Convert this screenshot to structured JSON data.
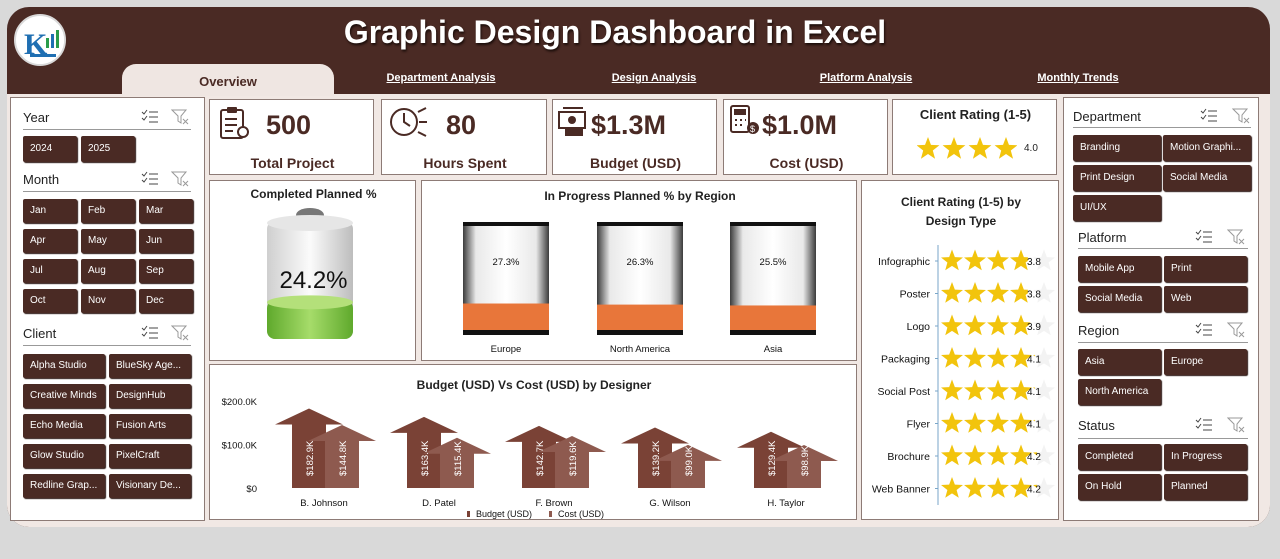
{
  "header": {
    "title": "Graphic Design Dashboard in Excel"
  },
  "tabs": [
    "Overview",
    "Department Analysis",
    "Design Analysis",
    "Platform Analysis",
    "Monthly Trends"
  ],
  "slicers_left": {
    "year": {
      "label": "Year",
      "items": [
        "2024",
        "2025"
      ]
    },
    "month": {
      "label": "Month",
      "items": [
        "Jan",
        "Feb",
        "Mar",
        "Apr",
        "May",
        "Jun",
        "Jul",
        "Aug",
        "Sep",
        "Oct",
        "Nov",
        "Dec"
      ]
    },
    "client": {
      "label": "Client",
      "items": [
        "Alpha Studio",
        "BlueSky Age...",
        "Creative Minds",
        "DesignHub",
        "Echo Media",
        "Fusion Arts",
        "Glow Studio",
        "PixelCraft",
        "Redline Grap...",
        "Visionary De..."
      ]
    }
  },
  "slicers_right": {
    "department": {
      "label": "Department",
      "items": [
        "Branding",
        "Motion Graphi...",
        "Print Design",
        "Social Media",
        "UI/UX"
      ]
    },
    "platform": {
      "label": "Platform",
      "items": [
        "Mobile App",
        "Print",
        "Social Media",
        "Web"
      ]
    },
    "region": {
      "label": "Region",
      "items": [
        "Asia",
        "Europe",
        "North America"
      ]
    },
    "status": {
      "label": "Status",
      "items": [
        "Completed",
        "In Progress",
        "On Hold",
        "Planned"
      ]
    }
  },
  "kpis": [
    {
      "value": "500",
      "label": "Total Project",
      "icon": "clipboard-icon"
    },
    {
      "value": "80",
      "label": "Hours Spent",
      "icon": "clock-icon"
    },
    {
      "value": "$1.3M",
      "label": "Budget (USD)",
      "icon": "money-icon"
    },
    {
      "value": "$1.0M",
      "label": "Cost (USD)",
      "icon": "calculator-icon"
    }
  ],
  "client_rating": {
    "title": "Client Rating (1-5)",
    "value": "4.0",
    "rating": 4.0
  },
  "completed": {
    "title": "Completed Planned %",
    "value": "24.2%",
    "fraction": 0.242
  },
  "in_progress": {
    "title": "In Progress Planned % by Region",
    "regions": [
      {
        "name": "Europe",
        "label": "27.3%",
        "value": 0.273
      },
      {
        "name": "North America",
        "label": "26.3%",
        "value": 0.263
      },
      {
        "name": "Asia",
        "label": "25.5%",
        "value": 0.255
      }
    ]
  },
  "rating_by_design": {
    "title_line1": "Client Rating (1-5) by",
    "title_line2": "Design Type",
    "items": [
      {
        "name": "Infographic",
        "label": "3.8",
        "value": 3.8
      },
      {
        "name": "Poster",
        "label": "3.8",
        "value": 3.8
      },
      {
        "name": "Logo",
        "label": "3.9",
        "value": 3.9
      },
      {
        "name": "Packaging",
        "label": "4.1",
        "value": 4.1
      },
      {
        "name": "Social Post",
        "label": "4.1",
        "value": 4.1
      },
      {
        "name": "Flyer",
        "label": "4.1",
        "value": 4.1
      },
      {
        "name": "Brochure",
        "label": "4.2",
        "value": 4.2
      },
      {
        "name": "Web Banner",
        "label": "4.2",
        "value": 4.2
      }
    ]
  },
  "chart_data": {
    "type": "bar",
    "title": "Budget (USD) Vs Cost (USD) by Designer",
    "categories": [
      "B. Johnson",
      "D. Patel",
      "F. Brown",
      "G. Wilson",
      "H. Taylor"
    ],
    "series": [
      {
        "name": "Budget (USD)",
        "values": [
          182900,
          163400,
          142700,
          139200,
          129400
        ],
        "labels": [
          "$182.9K",
          "$163.4K",
          "$142.7K",
          "$139.2K",
          "$129.4K"
        ],
        "color": "#7a4236"
      },
      {
        "name": "Cost (USD)",
        "values": [
          144800,
          115400,
          119600,
          99000,
          98900
        ],
        "labels": [
          "$144.8K",
          "$115.4K",
          "$119.6K",
          "$99.0K",
          "$98.9K"
        ],
        "color": "#8e5a4f"
      }
    ],
    "yticks": [
      "$200.0K",
      "$100.0K",
      "$0"
    ],
    "ylim": [
      0,
      200000
    ],
    "legend": "bottom"
  },
  "colors": {
    "brown": "#4a2a24",
    "orange": "#e8763a",
    "gold": "#f2c40c",
    "green": "#7cc242"
  }
}
